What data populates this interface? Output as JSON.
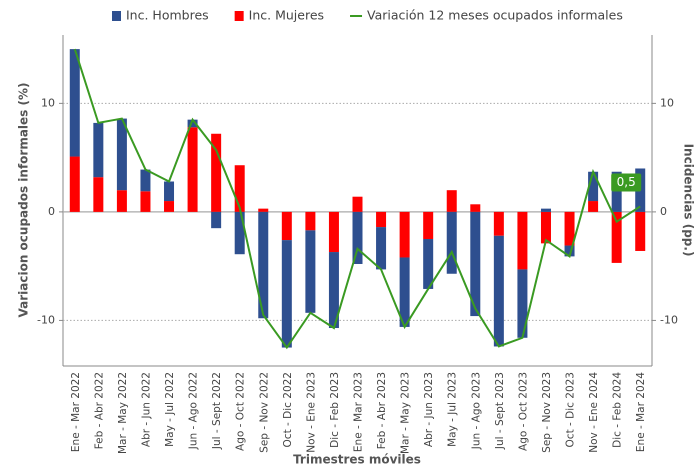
{
  "chart_data": {
    "type": "bar",
    "x_label": "Trimestres móviles",
    "y_label": "Variacion ocupados informales (%)",
    "y2_label": "Incidencias (pp.)",
    "categories": [
      "Ene - Mar 2022",
      "Feb - Abr 2022",
      "Mar - May 2022",
      "Abr - Jun 2022",
      "May - Jul 2022",
      "Jun - Ago 2022",
      "Jul - Sept 2022",
      "Ago - Oct 2022",
      "Sep - Nov 2022",
      "Oct - Dic 2022",
      "Nov - Ene 2023",
      "Dic - Feb 2023",
      "Ene - Mar 2023",
      "Feb - Abr 2023",
      "Mar - May 2023",
      "Abr - Jun 2023",
      "May - Jul 2023",
      "Jun - Ago 2023",
      "Jul - Sept 2023",
      "Ago - Oct 2023",
      "Sep - Nov 2023",
      "Oct - Dic 2023",
      "Nov - Ene 2024",
      "Dic - Feb 2024",
      "Ene - Mar 2024"
    ],
    "series": [
      {
        "name": "Inc. Hombres",
        "color": "#2e4f8f",
        "kind": "bar",
        "values": [
          9.9,
          5.0,
          6.6,
          2.0,
          1.8,
          0.7,
          -1.5,
          -3.9,
          -9.8,
          -9.9,
          -7.6,
          -7.0,
          -4.8,
          -3.9,
          -6.4,
          -4.6,
          -5.7,
          -9.6,
          -10.2,
          -6.3,
          0.3,
          -1.0,
          2.7,
          3.7,
          4.0
        ]
      },
      {
        "name": "Inc. Mujeres",
        "color": "#ff0000",
        "kind": "bar",
        "values": [
          5.1,
          3.2,
          2.0,
          1.9,
          1.0,
          7.8,
          7.2,
          4.3,
          0.3,
          -2.6,
          -1.7,
          -3.7,
          1.4,
          -1.4,
          -4.2,
          -2.5,
          2.0,
          0.7,
          -2.2,
          -5.3,
          -2.9,
          -3.1,
          1.0,
          -4.7,
          -3.6
        ]
      },
      {
        "name": "Variación 12 meses ocupados informales",
        "color": "#3a9a22",
        "kind": "line",
        "values": [
          15.0,
          8.2,
          8.6,
          3.9,
          2.8,
          8.5,
          5.7,
          0.4,
          -9.5,
          -12.5,
          -9.3,
          -10.7,
          -3.4,
          -5.3,
          -10.6,
          -7.1,
          -3.7,
          -8.9,
          -12.4,
          -11.6,
          -2.6,
          -4.1,
          3.7,
          -0.9,
          0.5
        ]
      }
    ],
    "annotation": {
      "text": "0,5",
      "index": 24
    },
    "ylim": [
      -14.2,
      16.3
    ],
    "yticks": [
      -10,
      0,
      10
    ],
    "y2lim": [
      -14.2,
      16.3
    ],
    "y2ticks": [
      -10,
      0,
      10
    ],
    "grid": true
  }
}
